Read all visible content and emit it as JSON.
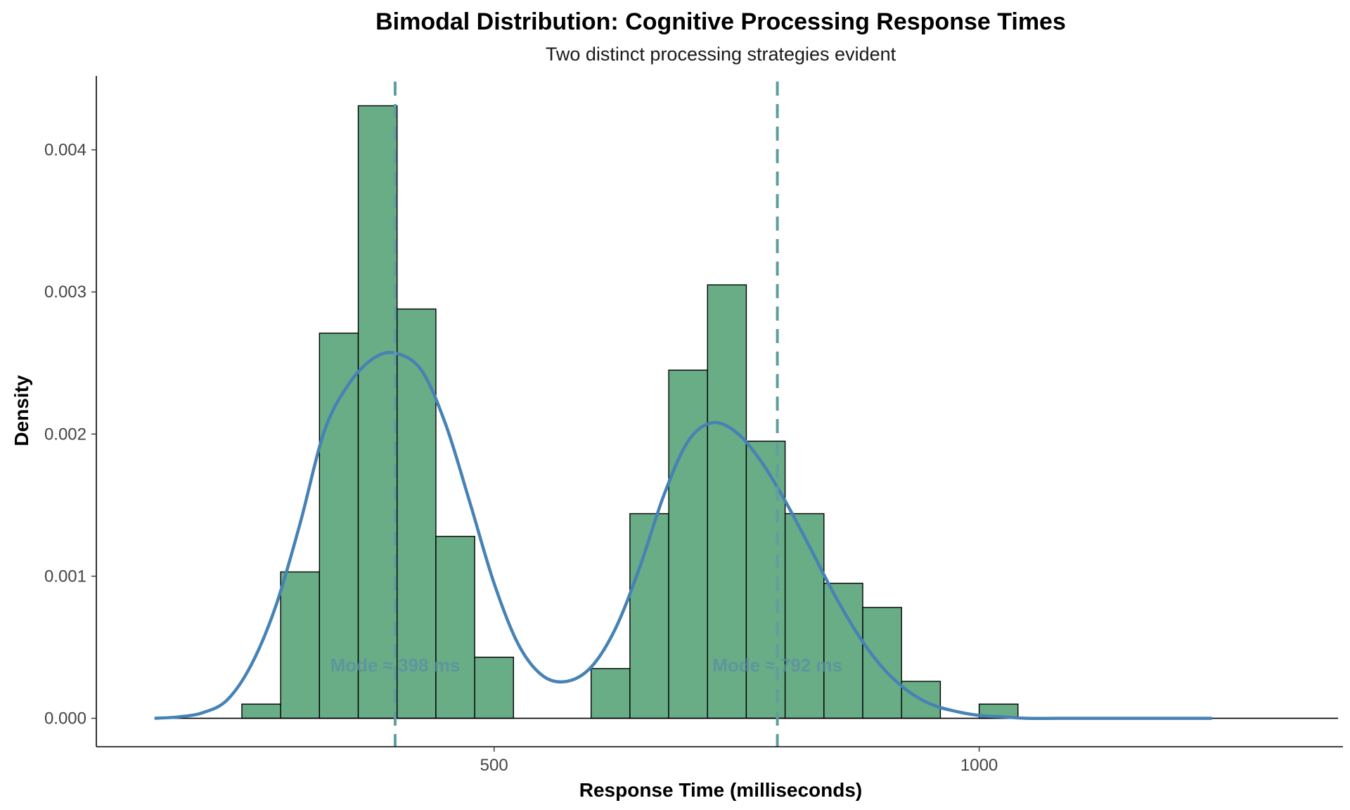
{
  "chart_data": {
    "type": "histogram",
    "title": "Bimodal Distribution: Cognitive Processing Response Times",
    "subtitle": "Two distinct processing strategies evident",
    "xlabel": "Response Time (milliseconds)",
    "ylabel": "Density",
    "xlim": [
      90,
      1375
    ],
    "ylim": [
      -0.0002,
      0.00452
    ],
    "x_ticks": [
      500,
      1000
    ],
    "x_tick_labels": [
      "500",
      "1000"
    ],
    "y_ticks": [
      0,
      0.001,
      0.002,
      0.003,
      0.004
    ],
    "y_tick_labels": [
      "0.000",
      "0.001",
      "0.002",
      "0.003",
      "0.004"
    ],
    "bin_width": 40,
    "bins": [
      {
        "start": 240,
        "end": 280,
        "density": 0.0001
      },
      {
        "start": 280,
        "end": 320,
        "density": 0.00103
      },
      {
        "start": 320,
        "end": 360,
        "density": 0.00271
      },
      {
        "start": 360,
        "end": 400,
        "density": 0.00431
      },
      {
        "start": 400,
        "end": 440,
        "density": 0.00288
      },
      {
        "start": 440,
        "end": 480,
        "density": 0.00128
      },
      {
        "start": 480,
        "end": 520,
        "density": 0.00043
      },
      {
        "start": 600,
        "end": 640,
        "density": 0.00035
      },
      {
        "start": 640,
        "end": 680,
        "density": 0.00144
      },
      {
        "start": 680,
        "end": 720,
        "density": 0.00245
      },
      {
        "start": 720,
        "end": 760,
        "density": 0.00305
      },
      {
        "start": 760,
        "end": 800,
        "density": 0.00195
      },
      {
        "start": 800,
        "end": 840,
        "density": 0.00144
      },
      {
        "start": 840,
        "end": 880,
        "density": 0.00095
      },
      {
        "start": 880,
        "end": 920,
        "density": 0.00078
      },
      {
        "start": 920,
        "end": 960,
        "density": 0.00026
      },
      {
        "start": 1000,
        "end": 1040,
        "density": 0.0001
      }
    ],
    "density_curve": {
      "x": [
        150,
        175,
        200,
        225,
        250,
        275,
        300,
        325,
        350,
        375,
        398,
        425,
        450,
        475,
        500,
        525,
        550,
        575,
        600,
        625,
        650,
        675,
        700,
        725,
        750,
        775,
        800,
        825,
        850,
        875,
        900,
        925,
        950,
        975,
        1000,
        1025,
        1050,
        1100,
        1150,
        1200,
        1240
      ],
      "y": [
        0.0,
        1e-05,
        4e-05,
        0.00013,
        0.00038,
        0.00079,
        0.00137,
        0.00202,
        0.00235,
        0.00253,
        0.00257,
        0.00245,
        0.00207,
        0.00152,
        0.00095,
        0.00052,
        0.0003,
        0.00026,
        0.00036,
        0.00063,
        0.00106,
        0.00157,
        0.00195,
        0.00208,
        0.00201,
        0.00181,
        0.00153,
        0.00121,
        0.00088,
        0.00059,
        0.00036,
        0.0002,
        0.0001,
        5e-05,
        2e-05,
        1e-05,
        0.0,
        0.0,
        0.0,
        0.0,
        0.0
      ]
    },
    "modes": [
      {
        "x": 398,
        "label": "Mode ≈ 398 ms"
      },
      {
        "x": 792,
        "label": "Mode ≈ 792 ms"
      }
    ],
    "colors": {
      "bar_fill": "#69ad86",
      "bar_stroke": "#000000",
      "curve": "#4682b4",
      "mode_line": "#5f9ea0",
      "mode_label": "#5b8ea6"
    },
    "grid": false,
    "legend": "none"
  }
}
